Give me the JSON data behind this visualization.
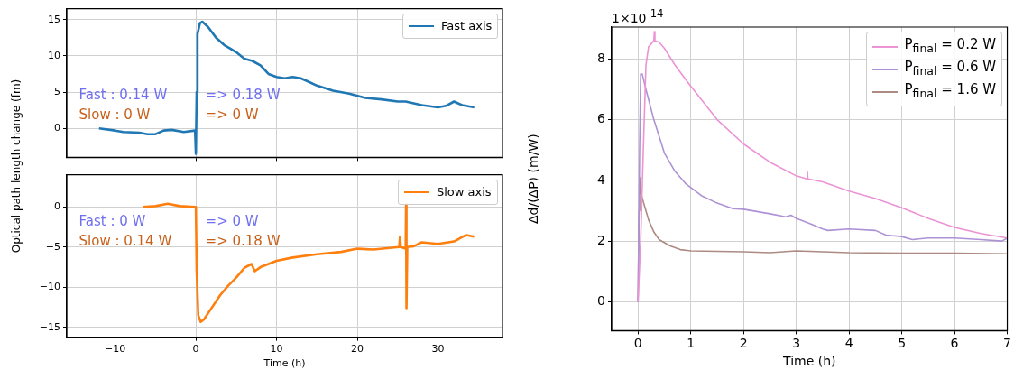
{
  "chart_data": [
    {
      "type": "line",
      "ylabel": "Optical path length change (fm)",
      "xlim": [
        -16,
        38
      ],
      "xticks": [
        -10,
        0,
        10,
        20,
        30
      ],
      "ylim": [
        -4,
        16.5
      ],
      "yticks": [
        0,
        5,
        10,
        15
      ],
      "grid": true,
      "legend": "top right",
      "tick_labels": "y",
      "series": [
        {
          "name": "Fast axis",
          "color": "#1f77b4",
          "x": [
            -12,
            -10,
            -9,
            -7,
            -6,
            -5,
            -4,
            -3,
            -1.5,
            -0.1,
            0,
            0.1,
            0.2,
            0.5,
            0.8,
            1.5,
            2.5,
            3.5,
            5,
            6,
            7,
            8,
            9,
            10,
            11,
            12,
            13,
            14,
            15,
            17,
            19,
            21,
            23,
            25,
            26,
            28,
            30,
            31,
            32,
            33,
            34.5
          ],
          "values": [
            0,
            -0.3,
            -0.5,
            -0.6,
            -0.8,
            -0.8,
            -0.3,
            -0.2,
            -0.5,
            -0.3,
            -3.5,
            5,
            13,
            14.5,
            14.7,
            14,
            12.5,
            11.5,
            10.5,
            9.6,
            9.3,
            8.7,
            7.5,
            7.1,
            6.9,
            7.1,
            6.9,
            6.4,
            5.9,
            5.2,
            4.8,
            4.2,
            4,
            3.7,
            3.7,
            3.2,
            2.9,
            3.1,
            3.7,
            3.2,
            2.9
          ]
        }
      ],
      "annotations": [
        "Fast : 0.14 W",
        "=> 0.18 W",
        "Slow : 0 W",
        "=> 0 W"
      ]
    },
    {
      "type": "line",
      "xlabel": "Time (h)",
      "xlim": [
        -16,
        38
      ],
      "xticks": [
        -10,
        0,
        10,
        20,
        30
      ],
      "ylim": [
        -16.2,
        4
      ],
      "yticks": [
        -15,
        -10,
        -5,
        0
      ],
      "grid": true,
      "legend": "top right",
      "series": [
        {
          "name": "Slow axis",
          "color": "#ff7f0e",
          "x": [
            -6.5,
            -5,
            -3.5,
            -2,
            -0.1,
            0,
            0.1,
            0.3,
            0.6,
            1,
            2,
            3,
            4,
            5,
            6,
            6.9,
            7.3,
            8,
            10,
            12,
            15,
            18,
            20,
            22,
            24,
            25.2,
            25.3,
            25.4,
            26,
            26.05,
            26.1,
            26.2,
            27,
            28,
            30,
            32,
            33.5,
            34.5
          ],
          "values": [
            0,
            0.1,
            0.4,
            0.1,
            0,
            0,
            -8,
            -13.5,
            -14.3,
            -14,
            -12.5,
            -11,
            -9.8,
            -8.8,
            -7.6,
            -7.1,
            -8,
            -7.5,
            -6.7,
            -6.3,
            -5.9,
            -5.6,
            -5.2,
            -5.3,
            -5.1,
            -5,
            -3.7,
            -5,
            -5.2,
            0.3,
            -12.6,
            -5,
            -4.9,
            -4.4,
            -4.6,
            -4.3,
            -3.5,
            -3.7
          ]
        }
      ],
      "annotations": [
        "Fast : 0 W",
        "=> 0 W",
        "Slow : 0.14 W",
        "=> 0.18 W"
      ]
    },
    {
      "type": "line",
      "xlabel": "Time (h)",
      "ylabel": "Δd/(ΔP) (m/W)",
      "xlim": [
        -0.5,
        7
      ],
      "xticks": [
        0,
        1,
        2,
        3,
        4,
        5,
        6,
        7
      ],
      "ylim": [
        -0.95,
        9.05
      ],
      "yticks": [
        0,
        2,
        4,
        6,
        8
      ],
      "grid": true,
      "legend": "top right",
      "annotations": [
        "1×10$^{-14}$"
      ],
      "series": [
        {
          "name": "P$_{final}$ = 0.2 W",
          "color": "#eb93d5",
          "x": [
            0,
            0.05,
            0.1,
            0.15,
            0.2,
            0.3,
            0.31,
            0.32,
            0.4,
            0.5,
            0.7,
            1,
            1.5,
            2,
            2.5,
            3,
            3.2,
            3.21,
            3.22,
            3.5,
            4,
            4.5,
            5,
            5.5,
            6,
            6.5,
            7
          ],
          "values": [
            0,
            2,
            5,
            7.8,
            8.4,
            8.6,
            8.9,
            8.6,
            8.55,
            8.35,
            7.8,
            7.1,
            6,
            5.2,
            4.6,
            4.15,
            4.05,
            4.3,
            4.05,
            3.95,
            3.65,
            3.4,
            3.1,
            2.75,
            2.45,
            2.25,
            2.1
          ]
        },
        {
          "name": "P$_{final}$ = 0.6 W",
          "color": "#ad92d6",
          "x": [
            0,
            0.03,
            0.05,
            0.08,
            0.15,
            0.3,
            0.5,
            0.7,
            0.9,
            1.2,
            1.5,
            1.8,
            2,
            2.5,
            2.8,
            2.9,
            3,
            3.3,
            3.5,
            3.6,
            4,
            4.5,
            4.7,
            5,
            5.2,
            5.5,
            6,
            6.5,
            6.9,
            7
          ],
          "values": [
            0,
            5,
            7.5,
            7.5,
            7,
            6,
            4.9,
            4.3,
            3.9,
            3.5,
            3.25,
            3.07,
            3.05,
            2.9,
            2.8,
            2.85,
            2.75,
            2.55,
            2.4,
            2.35,
            2.4,
            2.35,
            2.2,
            2.15,
            2.05,
            2.1,
            2.1,
            2.05,
            2,
            2.1
          ]
        },
        {
          "name": "P$_{final}$ = 1.6 W",
          "color": "#ad8a82",
          "x": [
            0,
            0.02,
            0.03,
            0.05,
            0.1,
            0.2,
            0.3,
            0.4,
            0.6,
            0.8,
            1,
            2,
            2.5,
            3,
            3.5,
            4,
            5,
            6,
            7
          ],
          "values": [
            0,
            3,
            4.1,
            3.6,
            3.3,
            2.7,
            2.3,
            2.05,
            1.85,
            1.72,
            1.68,
            1.65,
            1.62,
            1.68,
            1.65,
            1.62,
            1.6,
            1.6,
            1.58
          ]
        }
      ]
    }
  ]
}
